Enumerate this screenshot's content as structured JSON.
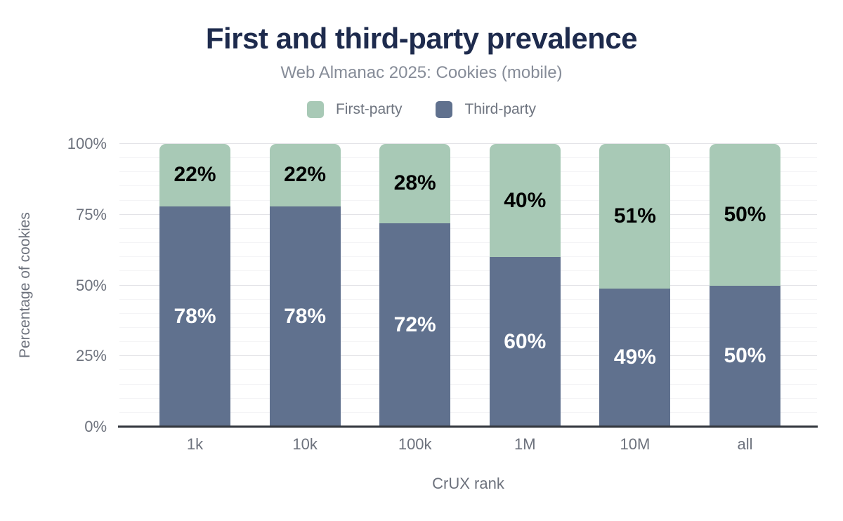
{
  "header": {
    "title": "First and third-party prevalence",
    "subtitle": "Web Almanac 2025: Cookies (mobile)"
  },
  "legend": {
    "position": "top",
    "items": [
      {
        "label": "First-party",
        "color": "#a8c9b6"
      },
      {
        "label": "Third-party",
        "color": "#60718e"
      }
    ]
  },
  "chart_data": {
    "type": "bar",
    "stacked": true,
    "title": "First and third-party prevalence",
    "subtitle": "Web Almanac 2025: Cookies (mobile)",
    "categories": [
      "1k",
      "10k",
      "100k",
      "1M",
      "10M",
      "all"
    ],
    "series": [
      {
        "name": "First-party",
        "color": "#a8c9b6",
        "label_color": "#000000",
        "values": [
          22,
          22,
          28,
          40,
          51,
          50
        ]
      },
      {
        "name": "Third-party",
        "color": "#60718e",
        "label_color": "#ffffff",
        "values": [
          78,
          78,
          72,
          60,
          49,
          50
        ]
      }
    ],
    "value_suffix": "%",
    "xlabel": "CrUX rank",
    "ylabel": "Percentage of cookies",
    "ylim": [
      0,
      100
    ],
    "y_ticks": [
      {
        "value": 0,
        "label": "0%"
      },
      {
        "value": 25,
        "label": "25%"
      },
      {
        "value": 50,
        "label": "50%"
      },
      {
        "value": 75,
        "label": "75%"
      },
      {
        "value": 100,
        "label": "100%"
      }
    ],
    "grid": {
      "minor_step": 5,
      "major_step": 25,
      "orientation": "horizontal"
    },
    "legend_position": "top"
  },
  "colors": {
    "title": "#1e2b4d",
    "subtitle": "#868c98",
    "axis_text": "#6d727d",
    "axis_line": "#32363d",
    "grid_minor": "#f4f4f6",
    "grid_major": "#e3e3e7",
    "background": "#ffffff"
  }
}
